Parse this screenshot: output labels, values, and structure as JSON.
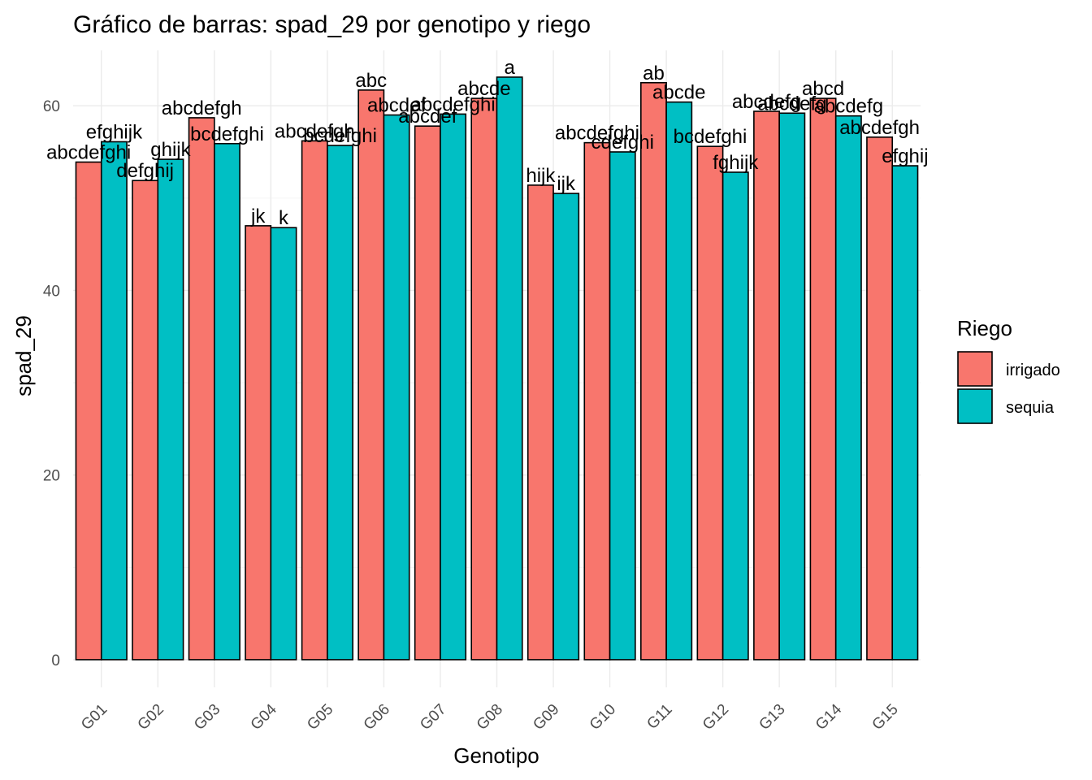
{
  "chart_data": {
    "type": "bar",
    "title": "Gráfico de barras: spad_29 por genotipo y riego",
    "xlabel": "Genotipo",
    "ylabel": "spad_29",
    "ylim": [
      -3,
      66
    ],
    "yticks": [
      0,
      20,
      40,
      60
    ],
    "categories": [
      "G01",
      "G02",
      "G03",
      "G04",
      "G05",
      "G06",
      "G07",
      "G08",
      "G09",
      "G10",
      "G11",
      "G12",
      "G13",
      "G14",
      "G15"
    ],
    "legend": {
      "title": "Riego",
      "position": "right"
    },
    "series": [
      {
        "name": "irrigado",
        "color": "#F8766D",
        "values": [
          53.9,
          51.9,
          58.7,
          47.0,
          56.2,
          61.7,
          57.8,
          60.8,
          51.4,
          56.0,
          62.5,
          55.6,
          59.4,
          60.8,
          56.6
        ],
        "labels": [
          "abcdefghi",
          "defghij",
          "abcdefgh",
          "jk",
          "abcdefgh",
          "abc",
          "abcdef",
          "abcde",
          "hijk",
          "abcdefghi",
          "ab",
          "bcdefghi",
          "abcdefg",
          "abcd",
          "abcdefgh"
        ]
      },
      {
        "name": "sequia",
        "color": "#00BFC4",
        "values": [
          56.1,
          54.2,
          55.9,
          46.8,
          55.7,
          59.0,
          59.1,
          63.1,
          50.5,
          55.0,
          60.4,
          52.8,
          59.2,
          58.9,
          53.5
        ],
        "labels": [
          "efghijk",
          "ghijk",
          "bcdefghi",
          "k",
          "bcdefghi",
          "abcdef",
          "abcdefghi",
          "a",
          "ijk",
          "cdefghi",
          "abcde",
          "fghijk",
          "abcdefg",
          "abcdefg",
          "efghij"
        ]
      }
    ]
  }
}
